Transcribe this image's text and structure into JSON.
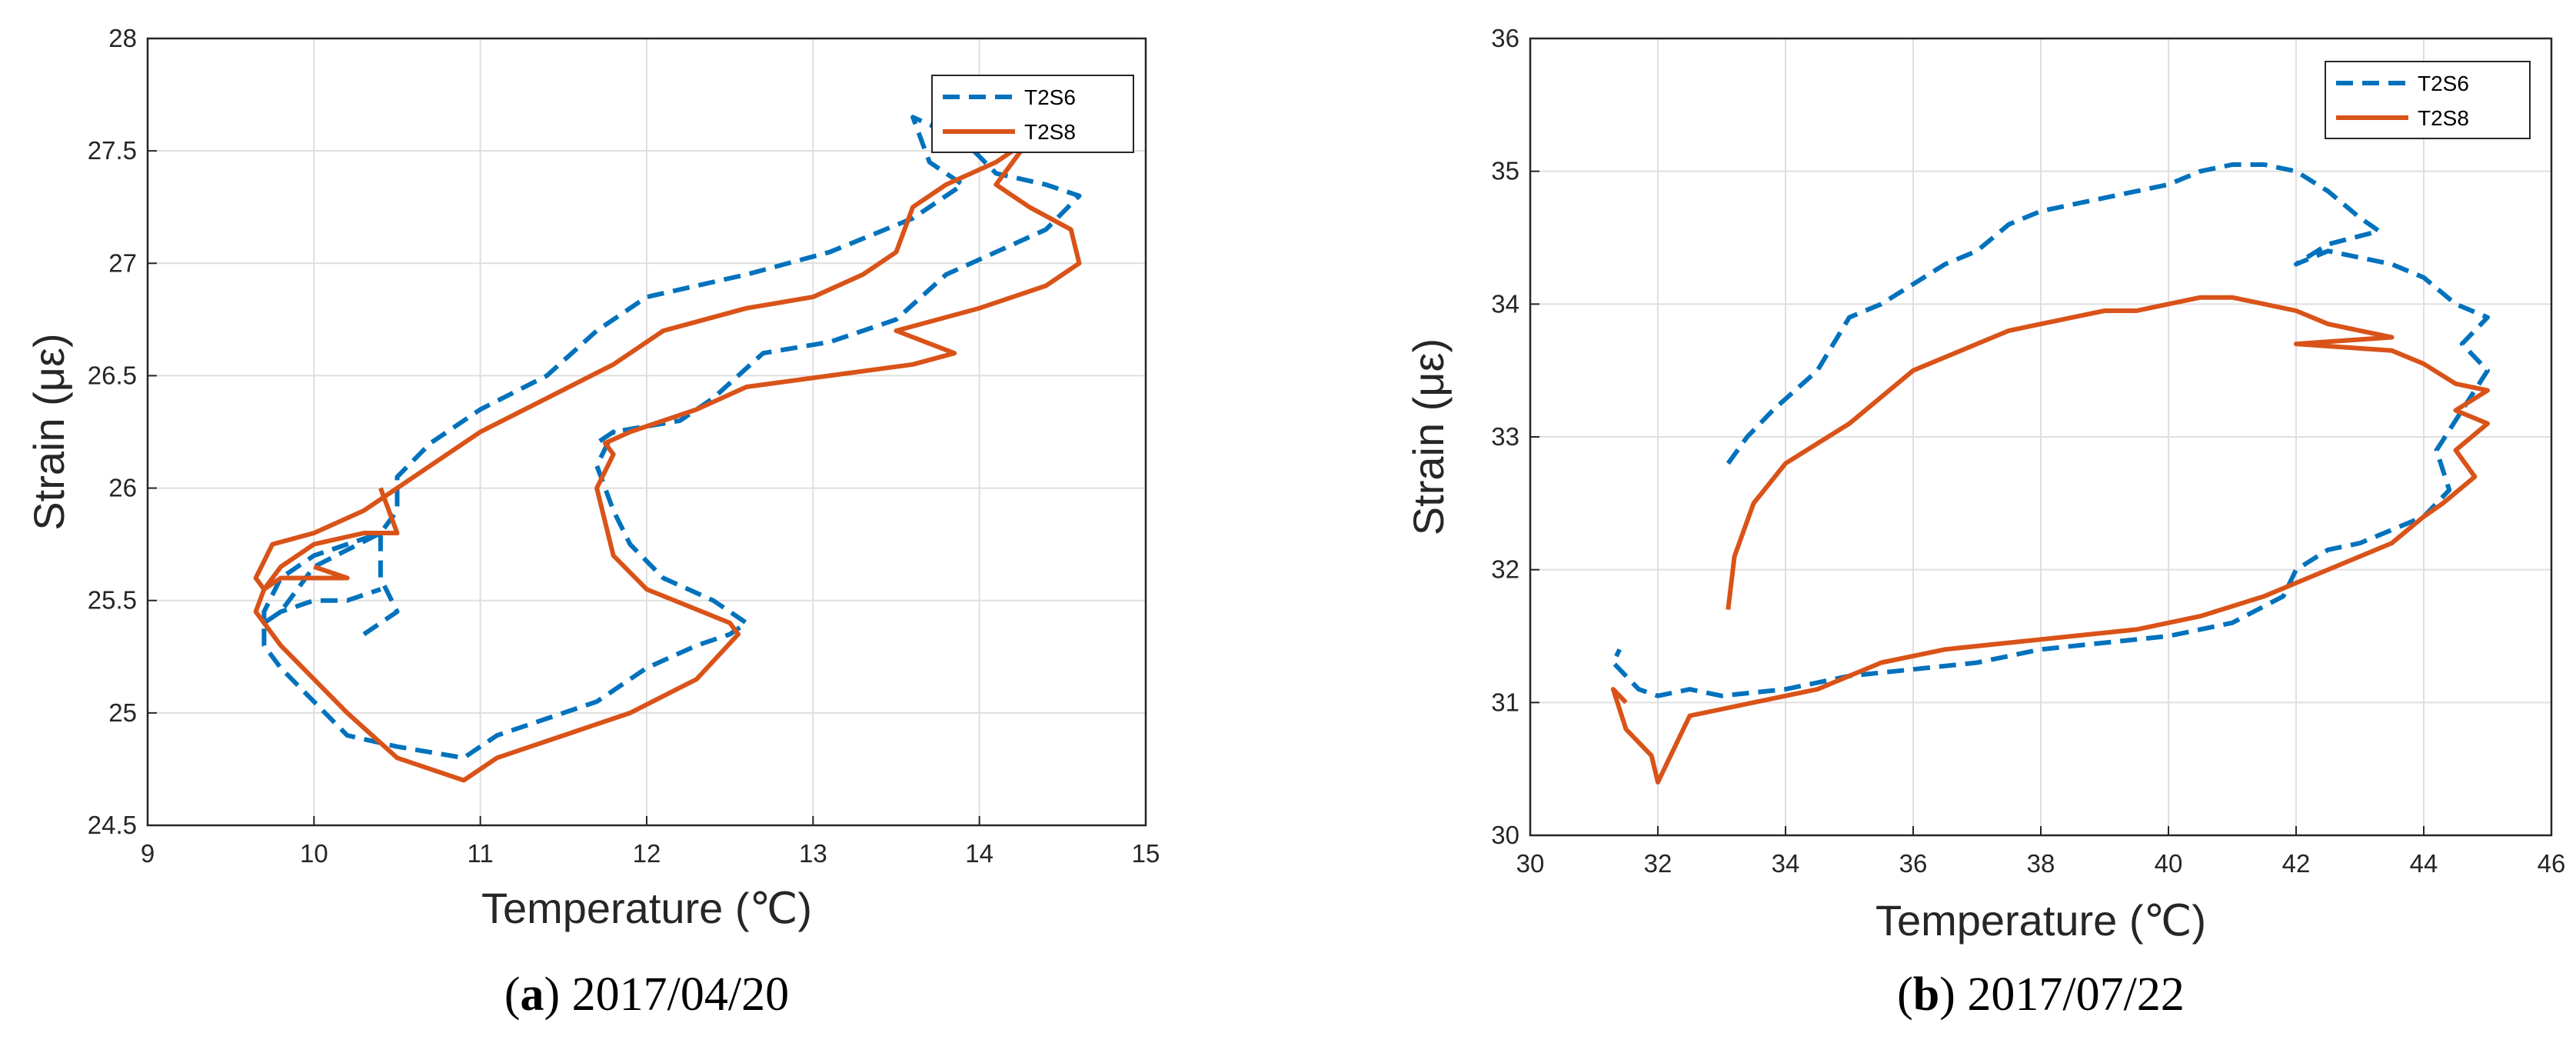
{
  "chart_data": [
    {
      "type": "line",
      "panel": "a",
      "caption_letter": "a",
      "caption_date": "2017/04/20",
      "title": "",
      "xlabel": "Temperature (℃)",
      "ylabel": "Strain (με)",
      "xlim": [
        9,
        15
      ],
      "ylim": [
        24.5,
        28
      ],
      "xticks": [
        "9",
        "10",
        "11",
        "12",
        "13",
        "14",
        "15"
      ],
      "yticks": [
        "24.5",
        "25",
        "25.5",
        "26",
        "26.5",
        "27",
        "27.5",
        "28"
      ],
      "grid": true,
      "legend_position": "top-right",
      "series": [
        {
          "name": "T2S6",
          "style": "dashed",
          "color": "#0072BD",
          "x": [
            10.3,
            10.5,
            10.4,
            10.4,
            10.2,
            10.0,
            9.8,
            9.7,
            9.7,
            9.8,
            10.0,
            10.2,
            10.5,
            10.9,
            11.1,
            11.3,
            11.7,
            12.0,
            12.3,
            12.5,
            12.6,
            12.4,
            12.1,
            11.9,
            11.8,
            11.7,
            11.8,
            11.7,
            11.8,
            12.2,
            12.4,
            12.7,
            13.1,
            13.5,
            13.8,
            14.1,
            14.4,
            14.6,
            14.4,
            14.1,
            13.9,
            13.6,
            13.7,
            13.9,
            13.6,
            13.1,
            12.6,
            12.0,
            11.7,
            11.4,
            11.0,
            10.7,
            10.5,
            10.5,
            10.4,
            10.0,
            9.9,
            9.8,
            9.7,
            9.8,
            10.0,
            10.2,
            10.4
          ],
          "y": [
            25.35,
            25.45,
            25.6,
            25.8,
            25.75,
            25.7,
            25.6,
            25.45,
            25.3,
            25.2,
            25.05,
            24.9,
            24.85,
            24.8,
            24.9,
            24.95,
            25.05,
            25.2,
            25.3,
            25.35,
            25.4,
            25.5,
            25.6,
            25.75,
            25.9,
            26.1,
            26.25,
            26.2,
            26.25,
            26.3,
            26.4,
            26.6,
            26.65,
            26.75,
            26.95,
            27.05,
            27.15,
            27.3,
            27.35,
            27.4,
            27.55,
            27.65,
            27.45,
            27.35,
            27.2,
            27.05,
            26.95,
            26.85,
            26.7,
            26.5,
            26.35,
            26.2,
            26.05,
            25.9,
            25.8,
            25.65,
            25.55,
            25.45,
            25.4,
            25.45,
            25.5,
            25.5,
            25.55
          ]
        },
        {
          "name": "T2S8",
          "style": "solid",
          "color": "#D95319",
          "x": [
            10.4,
            10.5,
            10.3,
            10.0,
            9.8,
            9.7,
            9.65,
            9.8,
            10.0,
            10.2,
            10.5,
            10.9,
            11.1,
            11.5,
            11.9,
            12.3,
            12.55,
            12.5,
            12.0,
            11.8,
            11.7,
            11.8,
            11.75,
            11.9,
            12.3,
            12.6,
            13.1,
            13.6,
            13.85,
            13.5,
            14.0,
            14.4,
            14.6,
            14.55,
            14.3,
            14.1,
            14.2,
            14.3,
            14.1,
            13.8,
            13.6,
            13.5,
            13.3,
            13.0,
            12.6,
            12.1,
            11.8,
            11.4,
            11.0,
            10.7,
            10.5,
            10.3,
            10.0,
            9.75,
            9.65,
            9.7,
            9.8,
            10.2,
            10.0
          ],
          "y": [
            26.0,
            25.8,
            25.8,
            25.75,
            25.65,
            25.55,
            25.45,
            25.3,
            25.15,
            25.0,
            24.8,
            24.7,
            24.8,
            24.9,
            25.0,
            25.15,
            25.35,
            25.4,
            25.55,
            25.7,
            26.0,
            26.15,
            26.2,
            26.25,
            26.35,
            26.45,
            26.5,
            26.55,
            26.6,
            26.7,
            26.8,
            26.9,
            27.0,
            27.15,
            27.25,
            27.35,
            27.45,
            27.55,
            27.45,
            27.35,
            27.25,
            27.05,
            26.95,
            26.85,
            26.8,
            26.7,
            26.55,
            26.4,
            26.25,
            26.1,
            26.0,
            25.9,
            25.8,
            25.75,
            25.6,
            25.55,
            25.6,
            25.6,
            25.65
          ]
        }
      ]
    },
    {
      "type": "line",
      "panel": "b",
      "caption_letter": "b",
      "caption_date": "2017/07/22",
      "title": "",
      "xlabel": "Temperature (℃)",
      "ylabel": "Strain (με)",
      "xlim": [
        30,
        46
      ],
      "ylim": [
        30,
        36
      ],
      "xticks": [
        "30",
        "32",
        "34",
        "36",
        "38",
        "40",
        "42",
        "44",
        "46"
      ],
      "yticks": [
        "30",
        "31",
        "32",
        "33",
        "34",
        "35",
        "36"
      ],
      "grid": true,
      "legend_position": "top-right",
      "series": [
        {
          "name": "T2S6",
          "style": "dashed",
          "color": "#0072BD",
          "x": [
            33.1,
            33.4,
            33.8,
            34.5,
            35.0,
            35.5,
            36.0,
            36.5,
            37.0,
            37.5,
            38.0,
            38.5,
            39.0,
            39.5,
            40.0,
            40.5,
            41.0,
            41.5,
            42.0,
            42.5,
            43.0,
            43.3,
            42.5,
            42.0,
            42.5,
            43.5,
            44.0,
            44.5,
            45.0,
            44.6,
            45.0,
            44.6,
            44.2,
            44.4,
            44.0,
            43.5,
            43.0,
            42.5,
            42.0,
            41.8,
            41.0,
            40.0,
            39.0,
            38.0,
            37.0,
            36.0,
            35.0,
            34.0,
            33.0,
            32.5,
            32.0,
            31.7,
            31.5,
            31.3,
            31.4
          ],
          "y": [
            32.8,
            33.0,
            33.2,
            33.5,
            33.9,
            34.0,
            34.15,
            34.3,
            34.4,
            34.6,
            34.7,
            34.75,
            34.8,
            34.85,
            34.9,
            35.0,
            35.05,
            35.05,
            35.0,
            34.85,
            34.65,
            34.55,
            34.45,
            34.3,
            34.4,
            34.3,
            34.2,
            34.0,
            33.9,
            33.7,
            33.5,
            33.2,
            32.9,
            32.6,
            32.4,
            32.3,
            32.2,
            32.15,
            32.0,
            31.8,
            31.6,
            31.5,
            31.45,
            31.4,
            31.3,
            31.25,
            31.2,
            31.1,
            31.05,
            31.1,
            31.05,
            31.1,
            31.2,
            31.3,
            31.4
          ]
        },
        {
          "name": "T2S8",
          "style": "solid",
          "color": "#D95319",
          "x": [
            33.1,
            33.2,
            33.5,
            34.0,
            34.5,
            35.0,
            35.5,
            36.0,
            36.5,
            37.0,
            37.5,
            38.0,
            38.5,
            39.0,
            39.5,
            40.0,
            40.5,
            41.0,
            41.5,
            42.0,
            42.5,
            43.0,
            43.5,
            42.0,
            43.5,
            44.0,
            44.5,
            45.0,
            44.5,
            45.0,
            44.5,
            44.8,
            44.3,
            44.0,
            43.5,
            43.0,
            42.0,
            41.5,
            40.5,
            39.5,
            38.5,
            37.5,
            36.5,
            35.5,
            34.5,
            33.5,
            33.0,
            32.5,
            32.0,
            31.9,
            31.5,
            31.3,
            31.5
          ],
          "y": [
            31.7,
            32.1,
            32.5,
            32.8,
            32.95,
            33.1,
            33.3,
            33.5,
            33.6,
            33.7,
            33.8,
            33.85,
            33.9,
            33.95,
            33.95,
            34.0,
            34.05,
            34.05,
            34.0,
            33.95,
            33.85,
            33.8,
            33.75,
            33.7,
            33.65,
            33.55,
            33.4,
            33.35,
            33.2,
            33.1,
            32.9,
            32.7,
            32.5,
            32.4,
            32.2,
            32.1,
            31.9,
            31.8,
            31.65,
            31.55,
            31.5,
            31.45,
            31.4,
            31.3,
            31.1,
            31.0,
            30.95,
            30.9,
            30.4,
            30.6,
            30.8,
            31.1,
            31.0
          ]
        }
      ]
    }
  ]
}
